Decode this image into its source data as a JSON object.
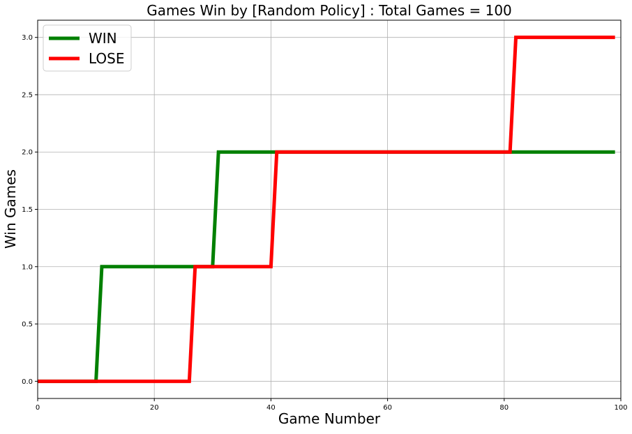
{
  "chart_data": {
    "type": "line",
    "title": "Games Win by [Random Policy] : Total Games = 100",
    "xlabel": "Game Number",
    "ylabel": "Win Games",
    "xlim": [
      0,
      100
    ],
    "ylim": [
      -0.15,
      3.15
    ],
    "xticks": [
      0,
      20,
      40,
      60,
      80,
      100
    ],
    "xtick_labels": [
      "0",
      "20",
      "40",
      "60",
      "80",
      "100"
    ],
    "yticks": [
      0.0,
      0.5,
      1.0,
      1.5,
      2.0,
      2.5,
      3.0
    ],
    "ytick_labels": [
      "0.0",
      "0.5",
      "1.0",
      "1.5",
      "2.0",
      "2.5",
      "3.0"
    ],
    "grid": true,
    "legend_position": "top-left",
    "series": [
      {
        "name": "WIN",
        "color": "#008000",
        "x": [
          0,
          10,
          11,
          30,
          31,
          99
        ],
        "y": [
          0,
          0,
          1,
          1,
          2,
          2
        ]
      },
      {
        "name": "LOSE",
        "color": "#ff0000",
        "x": [
          0,
          26,
          27,
          40,
          41,
          81,
          82,
          99
        ],
        "y": [
          0,
          0,
          1,
          1,
          2,
          2,
          3,
          3
        ]
      }
    ]
  }
}
